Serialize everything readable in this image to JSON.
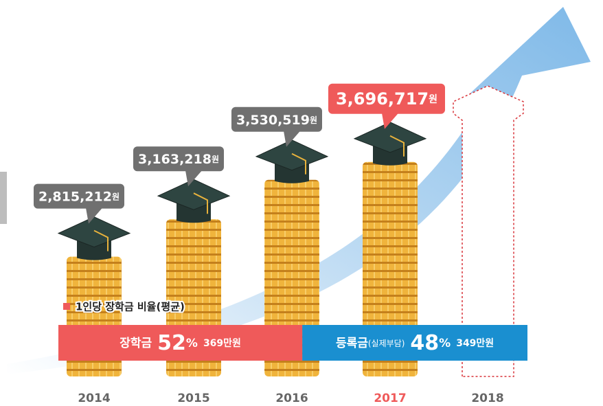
{
  "chart_data": {
    "type": "coin-stack",
    "categories": [
      "2014",
      "2015",
      "2016",
      "2017",
      "2018"
    ],
    "values": [
      2815212,
      3163218,
      3530519,
      3696717,
      null
    ],
    "value_labels": [
      "2,815,212",
      "3,163,218",
      "3,530,519",
      "3,696,717",
      null
    ],
    "unit": "원",
    "highlight": "2017",
    "color": "#707070",
    "highlight_color": "#ef5a5a",
    "ylim": [
      1700000,
      3900000
    ],
    "split": {
      "legend": "1인당 장학금 비율(평균)",
      "segments": [
        {
          "name": "장학금",
          "value": 52,
          "unit": "%",
          "amount": "369만원",
          "color": "#ef5a5a"
        },
        {
          "name": "등록금",
          "note": "(실제부담)",
          "value": 48,
          "unit": "%",
          "amount": "349만원",
          "color": "#1a8fd0"
        }
      ]
    }
  }
}
